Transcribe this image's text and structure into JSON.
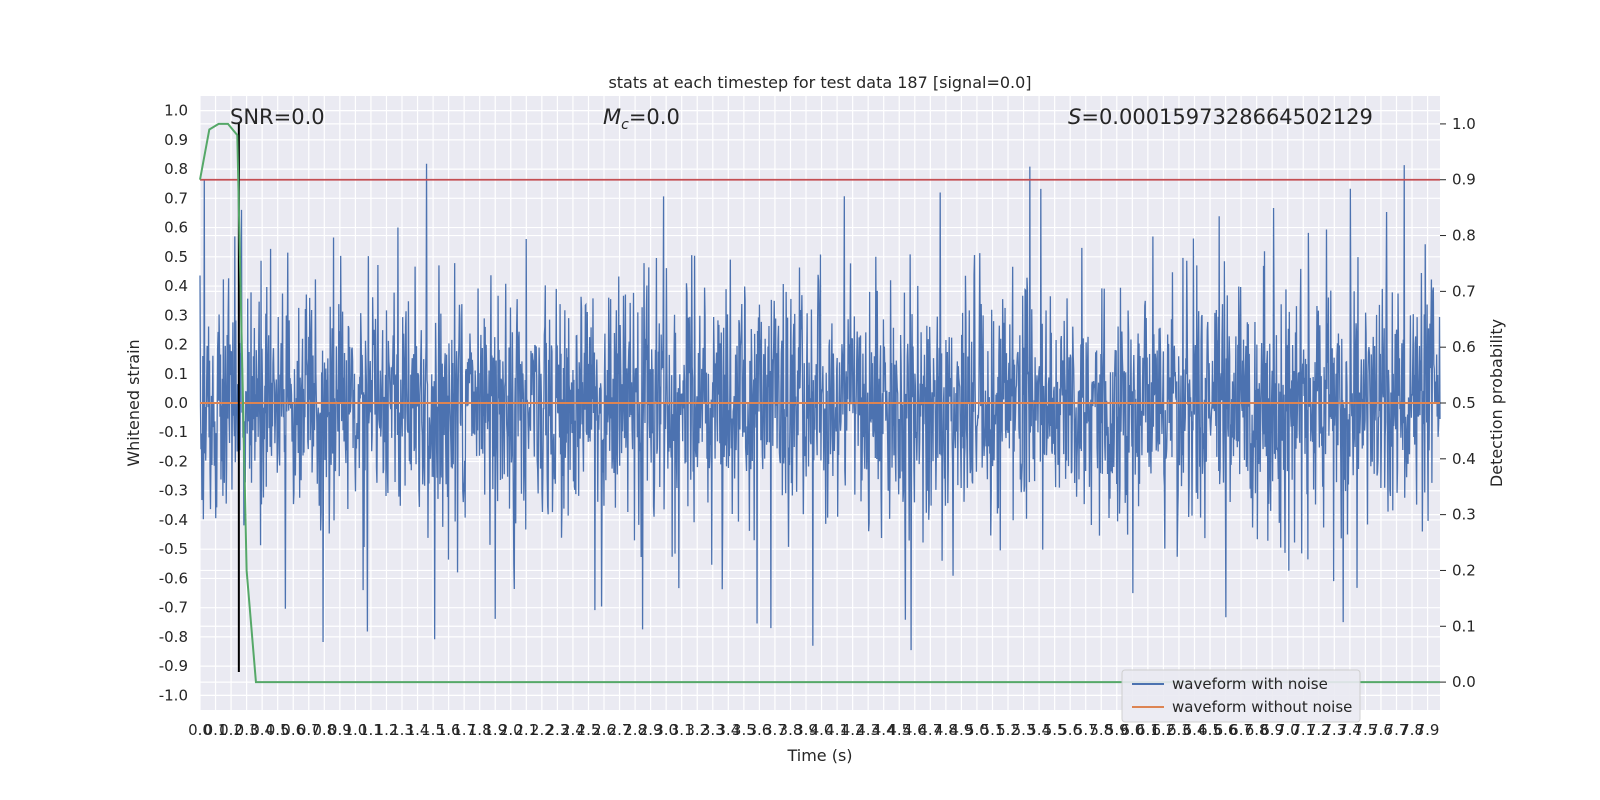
{
  "chart_data": {
    "type": "line",
    "title": "stats at each timestep for test data 187 [signal=0.0]",
    "xlabel": "Time (s)",
    "ylabel": "Whitened strain",
    "y2label": "Detection probability",
    "xlim": [
      0.0,
      7.98
    ],
    "ylim": [
      -1.05,
      1.05
    ],
    "y2lim": [
      -0.05,
      1.05
    ],
    "xticks": [
      "0.0",
      "0.1",
      "0.2",
      "0.3",
      "0.4",
      "0.5",
      "0.6",
      "0.7",
      "0.8",
      "0.9",
      "1.0",
      "1.1",
      "1.2",
      "1.3",
      "1.4",
      "1.5",
      "1.6",
      "1.7",
      "1.8",
      "1.9",
      "2.0",
      "2.1",
      "2.2",
      "2.3",
      "2.4",
      "2.5",
      "2.6",
      "2.7",
      "2.8",
      "2.9",
      "3.0",
      "3.1",
      "3.2",
      "3.3",
      "3.4",
      "3.5",
      "3.6",
      "3.7",
      "3.8",
      "3.9",
      "4.0",
      "4.1",
      "4.2",
      "4.3",
      "4.4",
      "4.5",
      "4.6",
      "4.7",
      "4.8",
      "4.9",
      "5.0",
      "5.1",
      "5.2",
      "5.3",
      "5.4",
      "5.5",
      "5.6",
      "5.7",
      "5.8",
      "5.9",
      "6.0",
      "6.1",
      "6.2",
      "6.3",
      "6.4",
      "6.5",
      "6.6",
      "6.7",
      "6.8",
      "6.9",
      "7.0",
      "7.1",
      "7.2",
      "7.3",
      "7.4",
      "7.5",
      "7.6",
      "7.7",
      "7.8",
      "7.9"
    ],
    "yticks": [
      "-1.0",
      "-0.9",
      "-0.8",
      "-0.7",
      "-0.6",
      "-0.5",
      "-0.4",
      "-0.3",
      "-0.2",
      "-0.1",
      "0.0",
      "0.1",
      "0.2",
      "0.3",
      "0.4",
      "0.5",
      "0.6",
      "0.7",
      "0.8",
      "0.9",
      "1.0"
    ],
    "y2ticks": [
      "0.0",
      "0.1",
      "0.2",
      "0.3",
      "0.4",
      "0.5",
      "0.6",
      "0.7",
      "0.8",
      "0.9",
      "1.0"
    ],
    "annotations": {
      "snr": "SNR=0.0",
      "mc_symbol": "M",
      "mc_sub": "c",
      "mc_value": "=0.0",
      "s_symbol": "S",
      "s_value": "=0.0001597328664502129"
    },
    "legend": {
      "placement": "lower-right",
      "entries": [
        "waveform with noise",
        "waveform without noise"
      ]
    },
    "grid": true,
    "series": [
      {
        "name": "waveform with noise",
        "axis": "left",
        "color": "#4c72b0",
        "kind": "noise",
        "amplitude": "approximately ±0.3 typical, peaks near 1.0 and -0.92"
      },
      {
        "name": "waveform without noise",
        "axis": "left",
        "color": "#dd8452",
        "x": [
          0.0,
          7.98
        ],
        "y": [
          0.0,
          0.0
        ]
      },
      {
        "axis": "right",
        "color": "#55a868",
        "x": [
          0.0,
          0.06,
          0.12,
          0.18,
          0.24,
          0.3,
          0.36,
          7.98
        ],
        "y": [
          0.9,
          0.99,
          1.0,
          1.0,
          0.98,
          0.2,
          0.0,
          0.0
        ]
      }
    ],
    "hlines": [
      {
        "axis": "right",
        "y": 0.9,
        "color": "#c44e52"
      }
    ],
    "vlines": [
      {
        "x": 0.25,
        "ymin": -0.92,
        "ymax": 0.96,
        "color": "#000000"
      }
    ]
  }
}
